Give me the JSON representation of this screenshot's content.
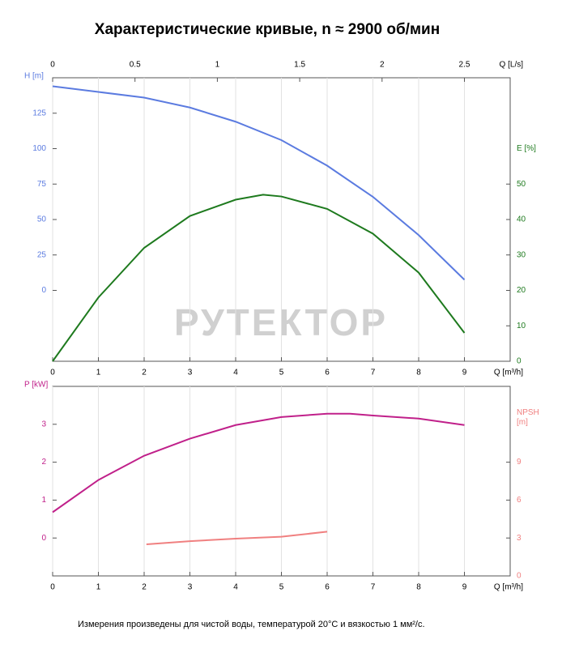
{
  "chart_data": [
    {
      "type": "line",
      "title": "Характеристические кривые, n ≈ 2900 об/мин",
      "xlabel": "Q [m³/h]",
      "x2label": "Q [L/s]",
      "ylabel": "H [m]",
      "y2label": "E [%]",
      "xlim": [
        0,
        10
      ],
      "xticks": [
        0,
        1,
        2,
        3,
        4,
        5,
        6,
        7,
        8,
        9
      ],
      "x2lim": [
        0,
        2.7778
      ],
      "x2ticks": [
        0,
        0.5,
        1,
        1.5,
        2,
        2.5
      ],
      "ylim": [
        -50,
        150
      ],
      "yticks": [
        0,
        25,
        50,
        75,
        100,
        125
      ],
      "y2lim": [
        0,
        80
      ],
      "y2ticks": [
        0,
        10,
        20,
        30,
        40,
        50
      ],
      "grid": true,
      "series": [
        {
          "color": "#5b7be0",
          "axis": "y",
          "x": [
            0,
            1,
            2,
            3,
            4,
            5,
            6,
            7,
            8,
            9
          ],
          "values": [
            144,
            140,
            136,
            129,
            119,
            106,
            88,
            66,
            39,
            7.5
          ]
        },
        {
          "color": "#1e7a1e",
          "axis": "y2",
          "x": [
            0,
            1,
            2,
            3,
            4,
            4.6,
            5,
            6,
            7,
            8,
            9
          ],
          "values": [
            0,
            18,
            32,
            41,
            45.6,
            47,
            46.5,
            43,
            36,
            25,
            8
          ]
        }
      ]
    },
    {
      "type": "line",
      "xlabel": "Q [m³/h]",
      "ylabel": "P [kW]",
      "y2label": "NPSH [m]",
      "xlim": [
        0,
        10
      ],
      "xticks": [
        0,
        1,
        2,
        3,
        4,
        5,
        6,
        7,
        8,
        9
      ],
      "ylim": [
        -1,
        4
      ],
      "yticks": [
        0,
        1,
        2,
        3
      ],
      "y2lim": [
        0,
        15
      ],
      "y2ticks": [
        0,
        3,
        6,
        9
      ],
      "grid": true,
      "series": [
        {
          "color": "#c0208a",
          "axis": "y",
          "x": [
            0,
            1,
            2,
            3,
            4,
            5,
            6,
            6.5,
            7,
            8,
            9
          ],
          "values": [
            0.68,
            1.53,
            2.17,
            2.62,
            2.98,
            3.19,
            3.28,
            3.28,
            3.23,
            3.15,
            2.98
          ]
        },
        {
          "color": "#f08080",
          "axis": "y2",
          "x": [
            2.05,
            3,
            4,
            5,
            6
          ],
          "values": [
            2.5,
            2.75,
            2.95,
            3.1,
            3.5
          ]
        }
      ]
    }
  ],
  "watermark": "РУТЕКТОР",
  "footnote": "Измерения произведены для чистой воды, температурой 20°C и вязкостью 1 мм²/с."
}
